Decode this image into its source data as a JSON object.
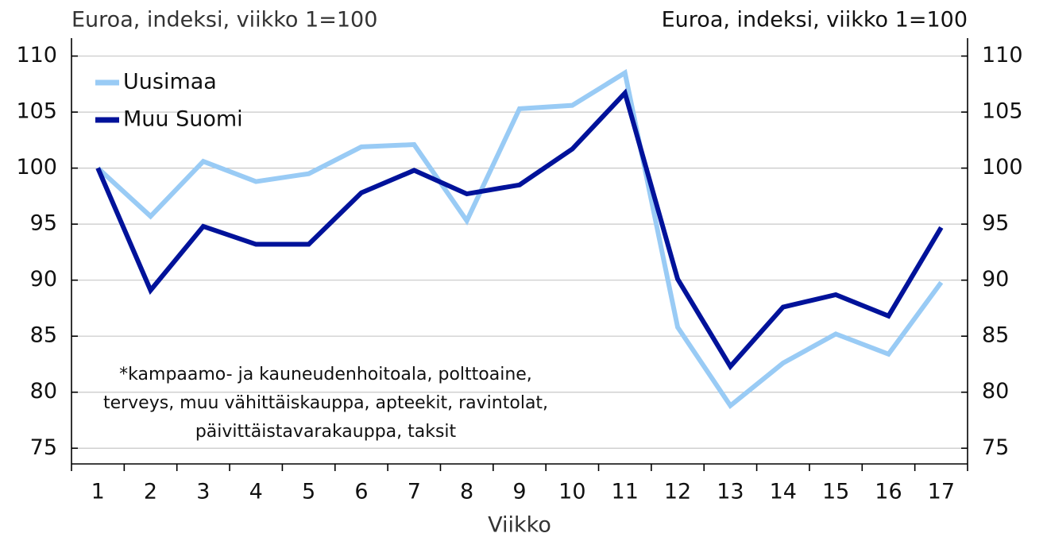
{
  "chart_data": {
    "type": "line",
    "y_label": "Euroa, indeksi, viikko 1=100",
    "y2_label": "Euroa, indeksi, viikko 1=100",
    "x_label": "Viikko",
    "note": [
      "*kampaamo- ja kauneudenhoitoala, polttoaine,",
      "terveys, muu vähittäiskauppa, apteekit, ravintolat,",
      "päivittäistavarakauppa, taksit"
    ],
    "categories": [
      "1",
      "2",
      "3",
      "4",
      "5",
      "6",
      "7",
      "8",
      "9",
      "10",
      "11",
      "12",
      "13",
      "14",
      "15",
      "16",
      "17"
    ],
    "series": [
      {
        "name": "Uusimaa",
        "color": "#99cbf5",
        "values": [
          100,
          95.7,
          100.6,
          98.8,
          99.5,
          101.9,
          102.1,
          95.3,
          105.3,
          105.6,
          108.5,
          85.8,
          78.8,
          82.6,
          85.2,
          83.4,
          89.8
        ]
      },
      {
        "name": "Muu Suomi",
        "color": "#00129a",
        "values": [
          100,
          89.1,
          94.8,
          93.2,
          93.2,
          97.8,
          99.8,
          97.7,
          98.5,
          101.7,
          106.7,
          90.1,
          82.3,
          87.6,
          88.7,
          86.8,
          94.7
        ]
      }
    ],
    "ylim": [
      73.6,
      111.6
    ],
    "yticks": [
      75,
      80,
      85,
      90,
      95,
      100,
      105,
      110
    ],
    "y2lim": [
      73.6,
      111.6
    ],
    "y2ticks": [
      75,
      80,
      85,
      90,
      95,
      100,
      105,
      110
    ],
    "grid": true,
    "legend": "upper left"
  }
}
